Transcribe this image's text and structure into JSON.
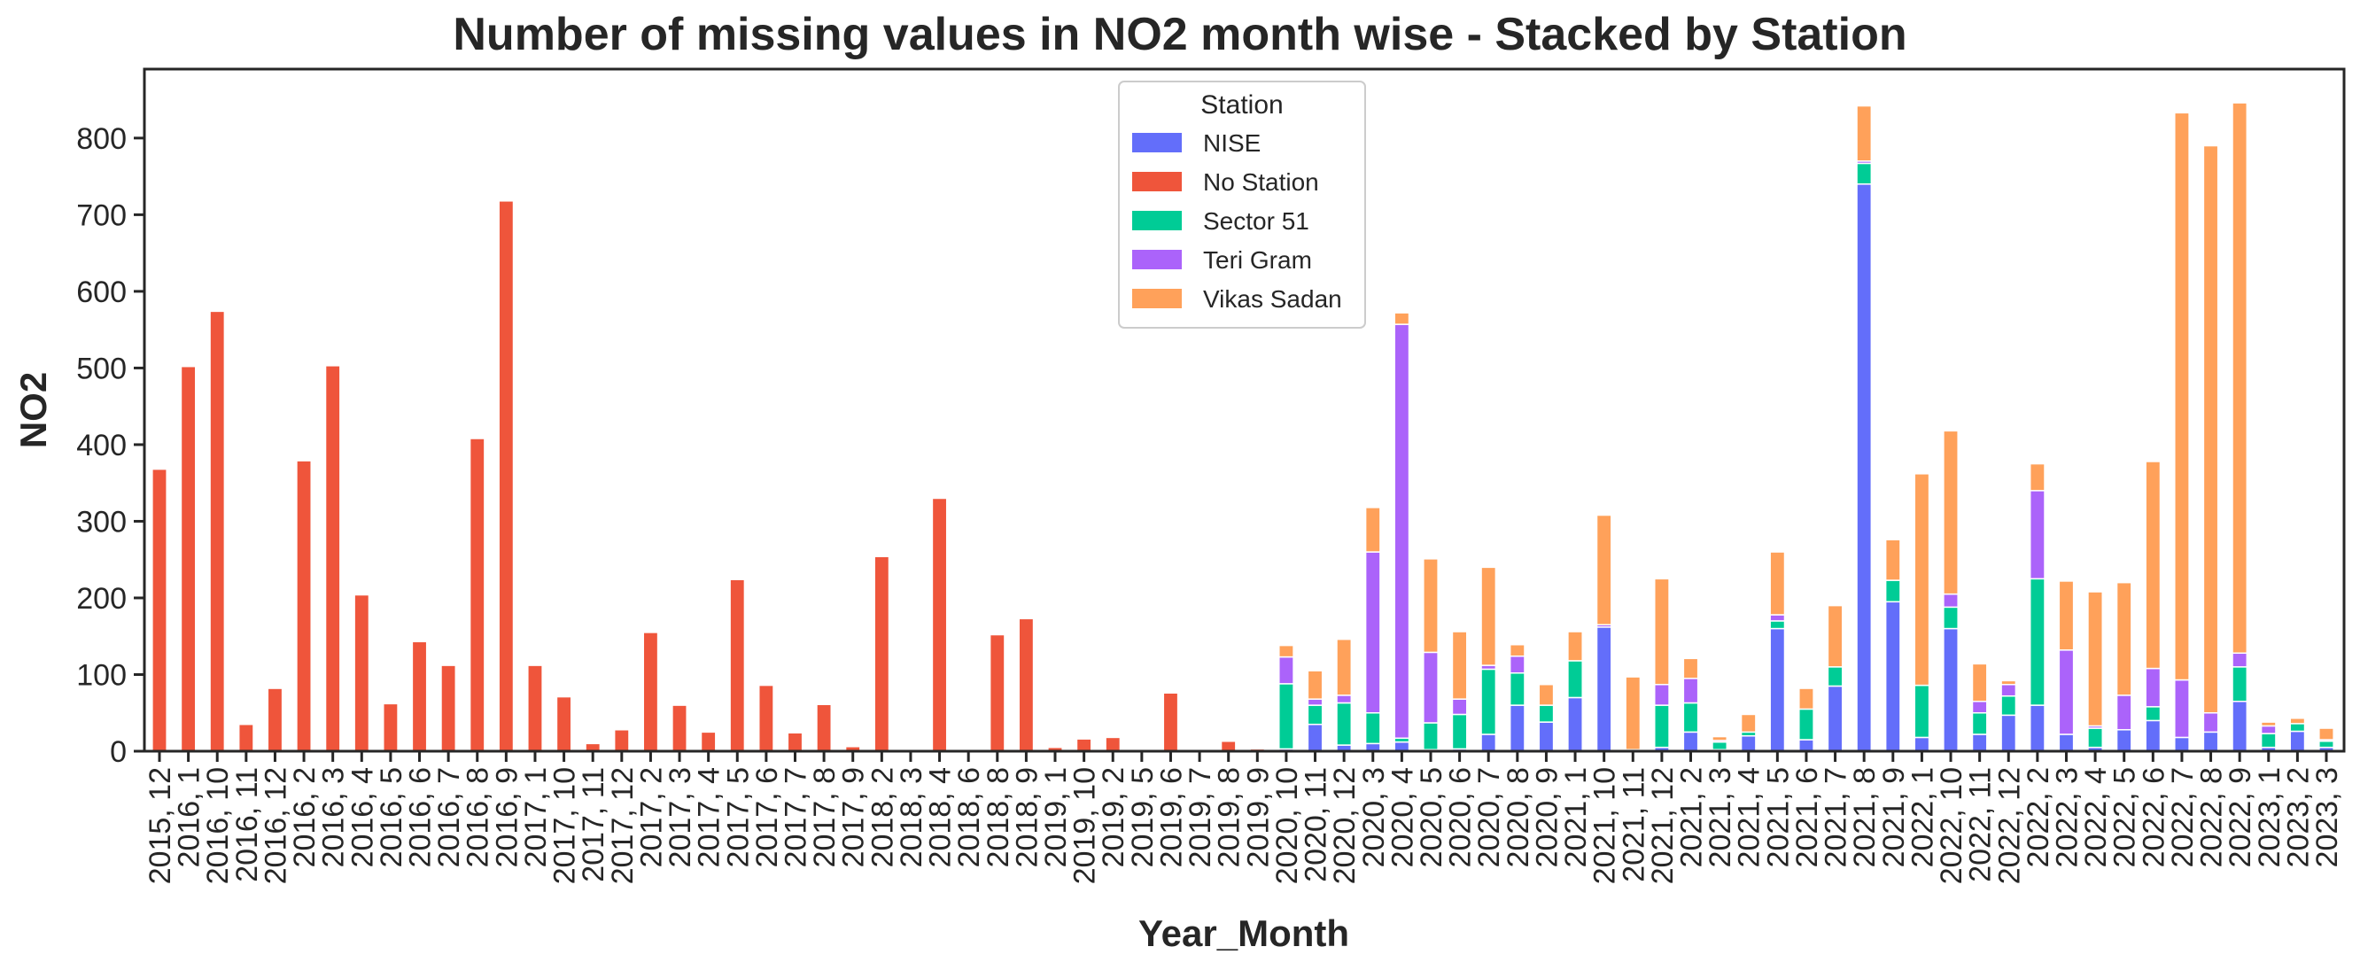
{
  "chart_data": {
    "type": "bar",
    "stacked": true,
    "title": "Number of missing values in NO2 month wise - Stacked by Station",
    "xlabel": "Year_Month",
    "ylabel": "NO2",
    "ylim": [
      0,
      890
    ],
    "yticks": [
      0,
      100,
      200,
      300,
      400,
      500,
      600,
      700,
      800
    ],
    "grid": false,
    "legend": {
      "title": "Station",
      "position": "top-center"
    },
    "categories": [
      "2015, 12",
      "2016, 1",
      "2016, 10",
      "2016, 11",
      "2016, 12",
      "2016, 2",
      "2016, 3",
      "2016, 4",
      "2016, 5",
      "2016, 6",
      "2016, 7",
      "2016, 8",
      "2016, 9",
      "2017, 1",
      "2017, 10",
      "2017, 11",
      "2017, 12",
      "2017, 2",
      "2017, 3",
      "2017, 4",
      "2017, 5",
      "2017, 6",
      "2017, 7",
      "2017, 8",
      "2017, 9",
      "2018, 2",
      "2018, 3",
      "2018, 4",
      "2018, 6",
      "2018, 8",
      "2018, 9",
      "2019, 1",
      "2019, 10",
      "2019, 2",
      "2019, 5",
      "2019, 6",
      "2019, 7",
      "2019, 8",
      "2019, 9",
      "2020, 10",
      "2020, 11",
      "2020, 12",
      "2020, 3",
      "2020, 4",
      "2020, 5",
      "2020, 6",
      "2020, 7",
      "2020, 8",
      "2020, 9",
      "2021, 1",
      "2021, 10",
      "2021, 11",
      "2021, 12",
      "2021, 2",
      "2021, 3",
      "2021, 4",
      "2021, 5",
      "2021, 6",
      "2021, 7",
      "2021, 8",
      "2021, 9",
      "2022, 1",
      "2022, 10",
      "2022, 11",
      "2022, 12",
      "2022, 2",
      "2022, 3",
      "2022, 4",
      "2022, 5",
      "2022, 6",
      "2022, 7",
      "2022, 8",
      "2022, 9",
      "2023, 1",
      "2023, 2",
      "2023, 3"
    ],
    "series": [
      {
        "name": "NISE",
        "color": "#636efa",
        "values": [
          0,
          0,
          0,
          0,
          0,
          0,
          0,
          0,
          0,
          0,
          0,
          0,
          0,
          0,
          0,
          0,
          0,
          0,
          0,
          0,
          0,
          0,
          0,
          0,
          0,
          0,
          0,
          0,
          0,
          0,
          0,
          0,
          0,
          0,
          0,
          0,
          0,
          0,
          0,
          3,
          35,
          8,
          10,
          12,
          2,
          3,
          22,
          60,
          38,
          70,
          162,
          0,
          5,
          25,
          2,
          20,
          160,
          15,
          85,
          740,
          195,
          18,
          160,
          22,
          47,
          60,
          22,
          5,
          28,
          40,
          18,
          25,
          65,
          5,
          26,
          5
        ]
      },
      {
        "name": "No Station",
        "color": "#ef553b",
        "values": [
          368,
          502,
          574,
          35,
          82,
          379,
          503,
          204,
          62,
          143,
          112,
          408,
          718,
          112,
          71,
          10,
          28,
          155,
          60,
          25,
          224,
          86,
          24,
          61,
          6,
          254,
          1,
          330,
          1,
          152,
          173,
          5,
          16,
          18,
          2,
          76,
          1,
          13,
          3,
          0,
          0,
          0,
          0,
          0,
          0,
          0,
          0,
          0,
          0,
          0,
          0,
          2,
          0,
          0,
          0,
          0,
          0,
          0,
          0,
          0,
          0,
          0,
          0,
          0,
          0,
          0,
          0,
          0,
          0,
          0,
          0,
          0,
          0,
          0,
          0,
          0
        ]
      },
      {
        "name": "Sector 51",
        "color": "#00cc96",
        "values": [
          0,
          0,
          0,
          0,
          0,
          0,
          0,
          0,
          0,
          0,
          0,
          0,
          0,
          0,
          0,
          0,
          0,
          0,
          0,
          0,
          0,
          0,
          0,
          0,
          0,
          0,
          0,
          0,
          0,
          0,
          0,
          0,
          0,
          0,
          0,
          0,
          0,
          0,
          0,
          85,
          25,
          55,
          40,
          5,
          35,
          45,
          85,
          42,
          22,
          48,
          0,
          0,
          55,
          38,
          10,
          5,
          10,
          40,
          25,
          27,
          28,
          68,
          28,
          28,
          25,
          165,
          0,
          25,
          0,
          18,
          0,
          0,
          45,
          18,
          10,
          8
        ]
      },
      {
        "name": "Teri Gram",
        "color": "#ab63fa",
        "values": [
          0,
          0,
          0,
          0,
          0,
          0,
          0,
          0,
          0,
          0,
          0,
          0,
          0,
          0,
          0,
          0,
          0,
          0,
          0,
          0,
          0,
          0,
          0,
          0,
          0,
          0,
          0,
          0,
          0,
          0,
          0,
          0,
          0,
          0,
          0,
          0,
          0,
          0,
          0,
          35,
          8,
          10,
          210,
          540,
          92,
          20,
          5,
          22,
          0,
          0,
          3,
          0,
          27,
          32,
          2,
          0,
          8,
          0,
          0,
          3,
          0,
          0,
          17,
          15,
          15,
          115,
          110,
          3,
          45,
          50,
          75,
          25,
          18,
          10,
          0,
          2
        ]
      },
      {
        "name": "Vikas Sadan",
        "color": "#ffa15a",
        "values": [
          0,
          0,
          0,
          0,
          0,
          0,
          0,
          0,
          0,
          0,
          0,
          0,
          0,
          0,
          0,
          0,
          0,
          0,
          0,
          0,
          0,
          0,
          0,
          0,
          0,
          0,
          0,
          0,
          0,
          0,
          0,
          0,
          0,
          0,
          0,
          0,
          0,
          0,
          0,
          15,
          37,
          73,
          58,
          15,
          122,
          88,
          128,
          15,
          27,
          38,
          143,
          95,
          138,
          26,
          5,
          23,
          82,
          27,
          80,
          72,
          53,
          276,
          213,
          49,
          5,
          35,
          90,
          175,
          147,
          270,
          740,
          740,
          718,
          5,
          7,
          15
        ]
      }
    ]
  }
}
